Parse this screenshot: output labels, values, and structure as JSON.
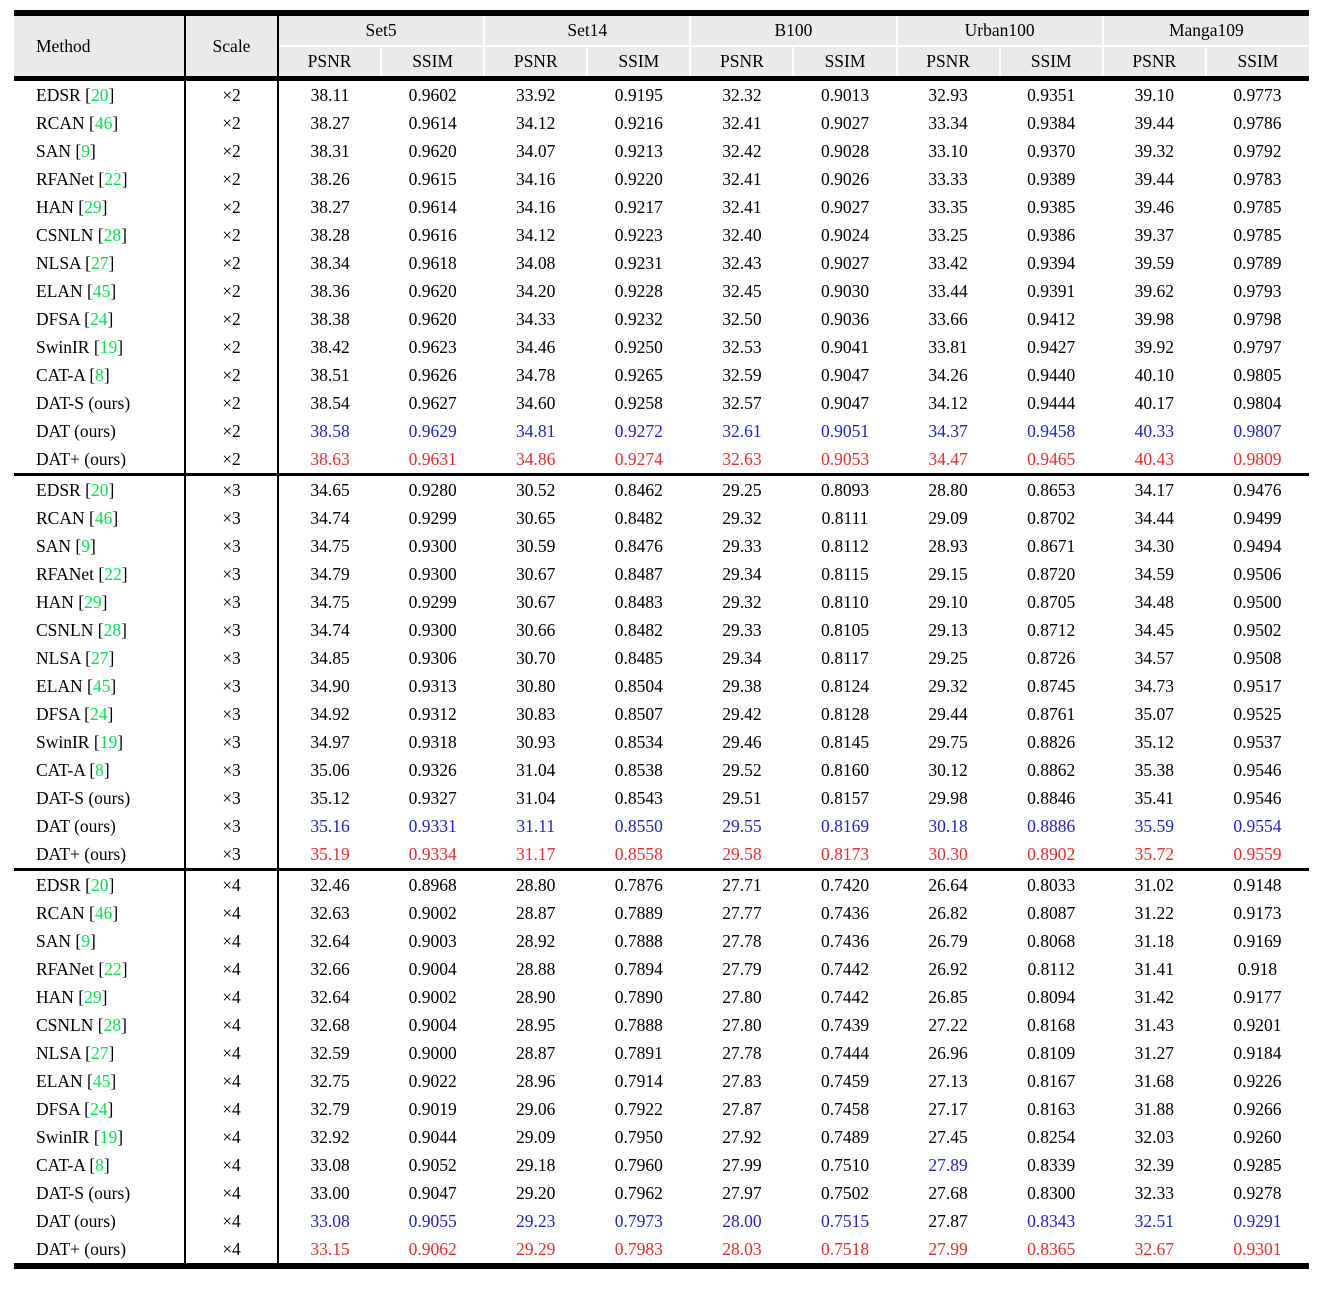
{
  "table": {
    "colors": {
      "best": "#ee2b2b",
      "second": "#2222d2",
      "citation": "#00e64c",
      "header_bg": "#eaeaea"
    },
    "header": {
      "method": "Method",
      "scale": "Scale",
      "datasets": [
        "Set5",
        "Set14",
        "B100",
        "Urban100",
        "Manga109"
      ],
      "metrics": [
        "PSNR",
        "SSIM"
      ]
    },
    "blocks": [
      {
        "scale": "×2",
        "rows": [
          {
            "method": "EDSR",
            "cite": "20",
            "values": [
              "38.11",
              "0.9602",
              "33.92",
              "0.9195",
              "32.32",
              "0.9013",
              "32.93",
              "0.9351",
              "39.10",
              "0.9773"
            ]
          },
          {
            "method": "RCAN",
            "cite": "46",
            "values": [
              "38.27",
              "0.9614",
              "34.12",
              "0.9216",
              "32.41",
              "0.9027",
              "33.34",
              "0.9384",
              "39.44",
              "0.9786"
            ]
          },
          {
            "method": "SAN",
            "cite": "9",
            "values": [
              "38.31",
              "0.9620",
              "34.07",
              "0.9213",
              "32.42",
              "0.9028",
              "33.10",
              "0.9370",
              "39.32",
              "0.9792"
            ]
          },
          {
            "method": "RFANet",
            "cite": "22",
            "values": [
              "38.26",
              "0.9615",
              "34.16",
              "0.9220",
              "32.41",
              "0.9026",
              "33.33",
              "0.9389",
              "39.44",
              "0.9783"
            ]
          },
          {
            "method": "HAN",
            "cite": "29",
            "values": [
              "38.27",
              "0.9614",
              "34.16",
              "0.9217",
              "32.41",
              "0.9027",
              "33.35",
              "0.9385",
              "39.46",
              "0.9785"
            ]
          },
          {
            "method": "CSNLN",
            "cite": "28",
            "values": [
              "38.28",
              "0.9616",
              "34.12",
              "0.9223",
              "32.40",
              "0.9024",
              "33.25",
              "0.9386",
              "39.37",
              "0.9785"
            ]
          },
          {
            "method": "NLSA",
            "cite": "27",
            "values": [
              "38.34",
              "0.9618",
              "34.08",
              "0.9231",
              "32.43",
              "0.9027",
              "33.42",
              "0.9394",
              "39.59",
              "0.9789"
            ]
          },
          {
            "method": "ELAN",
            "cite": "45",
            "values": [
              "38.36",
              "0.9620",
              "34.20",
              "0.9228",
              "32.45",
              "0.9030",
              "33.44",
              "0.9391",
              "39.62",
              "0.9793"
            ]
          },
          {
            "method": "DFSA",
            "cite": "24",
            "values": [
              "38.38",
              "0.9620",
              "34.33",
              "0.9232",
              "32.50",
              "0.9036",
              "33.66",
              "0.9412",
              "39.98",
              "0.9798"
            ]
          },
          {
            "method": "SwinIR",
            "cite": "19",
            "values": [
              "38.42",
              "0.9623",
              "34.46",
              "0.9250",
              "32.53",
              "0.9041",
              "33.81",
              "0.9427",
              "39.92",
              "0.9797"
            ]
          },
          {
            "method": "CAT-A",
            "cite": "8",
            "values": [
              "38.51",
              "0.9626",
              "34.78",
              "0.9265",
              "32.59",
              "0.9047",
              "34.26",
              "0.9440",
              "40.10",
              "0.9805"
            ]
          },
          {
            "method": "DAT-S (ours)",
            "cite": null,
            "values": [
              "38.54",
              "0.9627",
              "34.60",
              "0.9258",
              "32.57",
              "0.9047",
              "34.12",
              "0.9444",
              "40.17",
              "0.9804"
            ]
          },
          {
            "method": "DAT (ours)",
            "cite": null,
            "values": [
              "38.58",
              "0.9629",
              "34.81",
              "0.9272",
              "32.61",
              "0.9051",
              "34.37",
              "0.9458",
              "40.33",
              "0.9807"
            ],
            "colors": "bbbbbbbbbb"
          },
          {
            "method": "DAT+ (ours)",
            "cite": null,
            "values": [
              "38.63",
              "0.9631",
              "34.86",
              "0.9274",
              "32.63",
              "0.9053",
              "34.47",
              "0.9465",
              "40.43",
              "0.9809"
            ],
            "colors": "rrrrrrrrrr"
          }
        ]
      },
      {
        "scale": "×3",
        "rows": [
          {
            "method": "EDSR",
            "cite": "20",
            "values": [
              "34.65",
              "0.9280",
              "30.52",
              "0.8462",
              "29.25",
              "0.8093",
              "28.80",
              "0.8653",
              "34.17",
              "0.9476"
            ]
          },
          {
            "method": "RCAN",
            "cite": "46",
            "values": [
              "34.74",
              "0.9299",
              "30.65",
              "0.8482",
              "29.32",
              "0.8111",
              "29.09",
              "0.8702",
              "34.44",
              "0.9499"
            ]
          },
          {
            "method": "SAN",
            "cite": "9",
            "values": [
              "34.75",
              "0.9300",
              "30.59",
              "0.8476",
              "29.33",
              "0.8112",
              "28.93",
              "0.8671",
              "34.30",
              "0.9494"
            ]
          },
          {
            "method": "RFANet",
            "cite": "22",
            "values": [
              "34.79",
              "0.9300",
              "30.67",
              "0.8487",
              "29.34",
              "0.8115",
              "29.15",
              "0.8720",
              "34.59",
              "0.9506"
            ]
          },
          {
            "method": "HAN",
            "cite": "29",
            "values": [
              "34.75",
              "0.9299",
              "30.67",
              "0.8483",
              "29.32",
              "0.8110",
              "29.10",
              "0.8705",
              "34.48",
              "0.9500"
            ]
          },
          {
            "method": "CSNLN",
            "cite": "28",
            "values": [
              "34.74",
              "0.9300",
              "30.66",
              "0.8482",
              "29.33",
              "0.8105",
              "29.13",
              "0.8712",
              "34.45",
              "0.9502"
            ]
          },
          {
            "method": "NLSA",
            "cite": "27",
            "values": [
              "34.85",
              "0.9306",
              "30.70",
              "0.8485",
              "29.34",
              "0.8117",
              "29.25",
              "0.8726",
              "34.57",
              "0.9508"
            ]
          },
          {
            "method": "ELAN",
            "cite": "45",
            "values": [
              "34.90",
              "0.9313",
              "30.80",
              "0.8504",
              "29.38",
              "0.8124",
              "29.32",
              "0.8745",
              "34.73",
              "0.9517"
            ]
          },
          {
            "method": "DFSA",
            "cite": "24",
            "values": [
              "34.92",
              "0.9312",
              "30.83",
              "0.8507",
              "29.42",
              "0.8128",
              "29.44",
              "0.8761",
              "35.07",
              "0.9525"
            ]
          },
          {
            "method": "SwinIR",
            "cite": "19",
            "values": [
              "34.97",
              "0.9318",
              "30.93",
              "0.8534",
              "29.46",
              "0.8145",
              "29.75",
              "0.8826",
              "35.12",
              "0.9537"
            ]
          },
          {
            "method": "CAT-A",
            "cite": "8",
            "values": [
              "35.06",
              "0.9326",
              "31.04",
              "0.8538",
              "29.52",
              "0.8160",
              "30.12",
              "0.8862",
              "35.38",
              "0.9546"
            ]
          },
          {
            "method": "DAT-S (ours)",
            "cite": null,
            "values": [
              "35.12",
              "0.9327",
              "31.04",
              "0.8543",
              "29.51",
              "0.8157",
              "29.98",
              "0.8846",
              "35.41",
              "0.9546"
            ]
          },
          {
            "method": "DAT (ours)",
            "cite": null,
            "values": [
              "35.16",
              "0.9331",
              "31.11",
              "0.8550",
              "29.55",
              "0.8169",
              "30.18",
              "0.8886",
              "35.59",
              "0.9554"
            ],
            "colors": "bbbbbbbbbb"
          },
          {
            "method": "DAT+ (ours)",
            "cite": null,
            "values": [
              "35.19",
              "0.9334",
              "31.17",
              "0.8558",
              "29.58",
              "0.8173",
              "30.30",
              "0.8902",
              "35.72",
              "0.9559"
            ],
            "colors": "rrrrrrrrrr"
          }
        ]
      },
      {
        "scale": "×4",
        "rows": [
          {
            "method": "EDSR",
            "cite": "20",
            "values": [
              "32.46",
              "0.8968",
              "28.80",
              "0.7876",
              "27.71",
              "0.7420",
              "26.64",
              "0.8033",
              "31.02",
              "0.9148"
            ]
          },
          {
            "method": "RCAN",
            "cite": "46",
            "values": [
              "32.63",
              "0.9002",
              "28.87",
              "0.7889",
              "27.77",
              "0.7436",
              "26.82",
              "0.8087",
              "31.22",
              "0.9173"
            ]
          },
          {
            "method": "SAN",
            "cite": "9",
            "values": [
              "32.64",
              "0.9003",
              "28.92",
              "0.7888",
              "27.78",
              "0.7436",
              "26.79",
              "0.8068",
              "31.18",
              "0.9169"
            ]
          },
          {
            "method": "RFANet",
            "cite": "22",
            "values": [
              "32.66",
              "0.9004",
              "28.88",
              "0.7894",
              "27.79",
              "0.7442",
              "26.92",
              "0.8112",
              "31.41",
              "0.918"
            ]
          },
          {
            "method": "HAN",
            "cite": "29",
            "values": [
              "32.64",
              "0.9002",
              "28.90",
              "0.7890",
              "27.80",
              "0.7442",
              "26.85",
              "0.8094",
              "31.42",
              "0.9177"
            ]
          },
          {
            "method": "CSNLN",
            "cite": "28",
            "values": [
              "32.68",
              "0.9004",
              "28.95",
              "0.7888",
              "27.80",
              "0.7439",
              "27.22",
              "0.8168",
              "31.43",
              "0.9201"
            ]
          },
          {
            "method": "NLSA",
            "cite": "27",
            "values": [
              "32.59",
              "0.9000",
              "28.87",
              "0.7891",
              "27.78",
              "0.7444",
              "26.96",
              "0.8109",
              "31.27",
              "0.9184"
            ]
          },
          {
            "method": "ELAN",
            "cite": "45",
            "values": [
              "32.75",
              "0.9022",
              "28.96",
              "0.7914",
              "27.83",
              "0.7459",
              "27.13",
              "0.8167",
              "31.68",
              "0.9226"
            ]
          },
          {
            "method": "DFSA",
            "cite": "24",
            "values": [
              "32.79",
              "0.9019",
              "29.06",
              "0.7922",
              "27.87",
              "0.7458",
              "27.17",
              "0.8163",
              "31.88",
              "0.9266"
            ]
          },
          {
            "method": "SwinIR",
            "cite": "19",
            "values": [
              "32.92",
              "0.9044",
              "29.09",
              "0.7950",
              "27.92",
              "0.7489",
              "27.45",
              "0.8254",
              "32.03",
              "0.9260"
            ]
          },
          {
            "method": "CAT-A",
            "cite": "8",
            "values": [
              "33.08",
              "0.9052",
              "29.18",
              "0.7960",
              "27.99",
              "0.7510",
              "27.89",
              "0.8339",
              "32.39",
              "0.9285"
            ],
            "colors": "kkkkkkbkkk"
          },
          {
            "method": "DAT-S (ours)",
            "cite": null,
            "values": [
              "33.00",
              "0.9047",
              "29.20",
              "0.7962",
              "27.97",
              "0.7502",
              "27.68",
              "0.8300",
              "32.33",
              "0.9278"
            ]
          },
          {
            "method": "DAT (ours)",
            "cite": null,
            "values": [
              "33.08",
              "0.9055",
              "29.23",
              "0.7973",
              "28.00",
              "0.7515",
              "27.87",
              "0.8343",
              "32.51",
              "0.9291"
            ],
            "colors": "bbbbbbkbbb"
          },
          {
            "method": "DAT+ (ours)",
            "cite": null,
            "values": [
              "33.15",
              "0.9062",
              "29.29",
              "0.7983",
              "28.03",
              "0.7518",
              "27.99",
              "0.8365",
              "32.67",
              "0.9301"
            ],
            "colors": "rrrrrrrrrr"
          }
        ]
      }
    ]
  }
}
